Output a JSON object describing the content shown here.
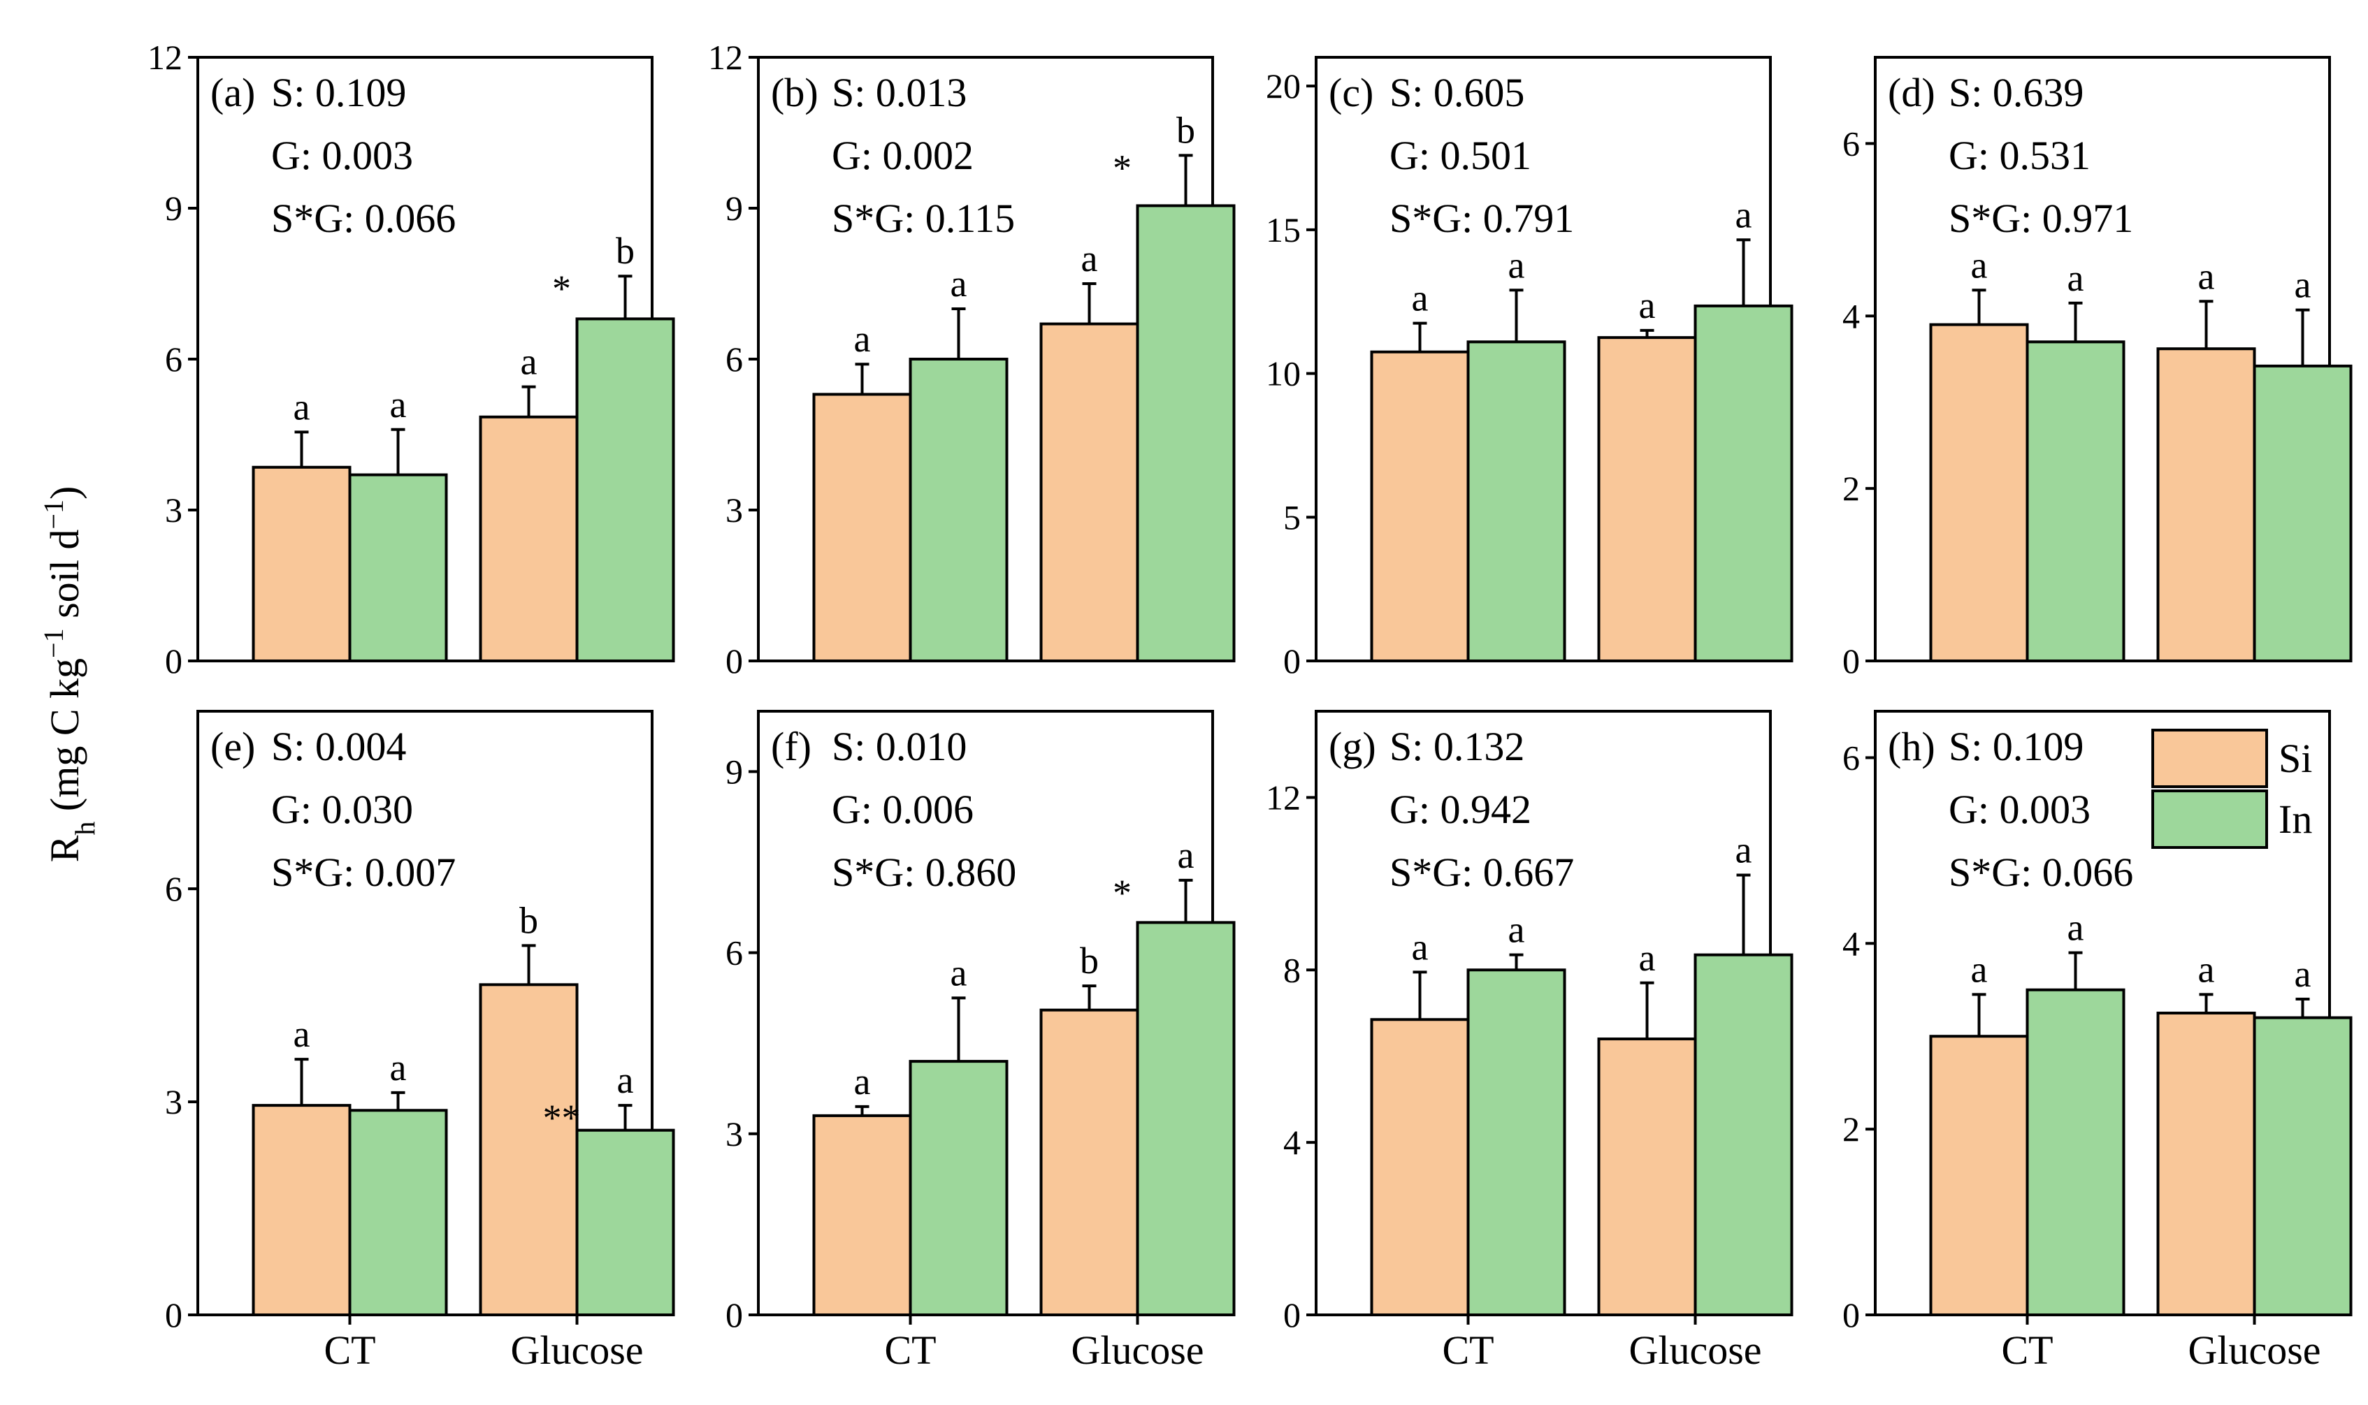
{
  "figure": {
    "ylabel_main": "R",
    "ylabel_sub": "h",
    "ylabel_rest": " (mg C kg",
    "ylabel_sup1": "−1",
    "ylabel_rest2": " soil d",
    "ylabel_sup2": "−1",
    "ylabel_close": ")"
  },
  "legend": {
    "items": [
      {
        "label": "Si",
        "color": "#f9c799"
      },
      {
        "label": "In",
        "color": "#9dd79b"
      }
    ]
  },
  "colors": {
    "Si": "#f9c799",
    "In": "#9dd79b",
    "axis": "#000000"
  },
  "chart_data": [
    {
      "panel": "(a)",
      "type": "bar",
      "stats": [
        "S: 0.109",
        "G: 0.003",
        "S*G: 0.066"
      ],
      "categories": [
        "CT",
        "Glucose"
      ],
      "ylim": [
        0,
        12
      ],
      "yticks": [
        0,
        3,
        6,
        9,
        12
      ],
      "series": [
        {
          "name": "Si",
          "values": [
            3.85,
            4.85
          ],
          "errors": [
            0.7,
            0.6
          ],
          "letters": [
            "a",
            "a"
          ],
          "stars": [
            "",
            ""
          ]
        },
        {
          "name": "In",
          "values": [
            3.7,
            6.8
          ],
          "errors": [
            0.9,
            0.85
          ],
          "letters": [
            "a",
            "b"
          ],
          "stars": [
            "",
            "*"
          ]
        }
      ]
    },
    {
      "panel": "(b)",
      "type": "bar",
      "stats": [
        "S: 0.013",
        "G: 0.002",
        "S*G: 0.115"
      ],
      "categories": [
        "CT",
        "Glucose"
      ],
      "ylim": [
        0,
        12
      ],
      "yticks": [
        0,
        3,
        6,
        9,
        12
      ],
      "series": [
        {
          "name": "Si",
          "values": [
            5.3,
            6.7
          ],
          "errors": [
            0.6,
            0.8
          ],
          "letters": [
            "a",
            "a"
          ],
          "stars": [
            "",
            ""
          ]
        },
        {
          "name": "In",
          "values": [
            6.0,
            9.05
          ],
          "errors": [
            1.0,
            1.0
          ],
          "letters": [
            "a",
            "b"
          ],
          "stars": [
            "",
            "*"
          ]
        }
      ]
    },
    {
      "panel": "(c)",
      "type": "bar",
      "stats": [
        "S: 0.605",
        "G: 0.501",
        "S*G: 0.791"
      ],
      "categories": [
        "CT",
        "Glucose"
      ],
      "ylim": [
        0,
        21
      ],
      "yticks": [
        0,
        5,
        10,
        15,
        20
      ],
      "series": [
        {
          "name": "Si",
          "values": [
            10.75,
            11.25
          ],
          "errors": [
            1.0,
            0.25
          ],
          "letters": [
            "a",
            "a"
          ],
          "stars": [
            "",
            ""
          ]
        },
        {
          "name": "In",
          "values": [
            11.1,
            12.35
          ],
          "errors": [
            1.8,
            2.3
          ],
          "letters": [
            "a",
            "a"
          ],
          "stars": [
            "",
            ""
          ]
        }
      ]
    },
    {
      "panel": "(d)",
      "type": "bar",
      "stats": [
        "S: 0.639",
        "G: 0.531",
        "S*G: 0.971"
      ],
      "categories": [
        "CT",
        "Glucose"
      ],
      "ylim": [
        0,
        7
      ],
      "yticks": [
        0,
        2,
        4,
        6
      ],
      "series": [
        {
          "name": "Si",
          "values": [
            3.9,
            3.62
          ],
          "errors": [
            0.4,
            0.55
          ],
          "letters": [
            "a",
            "a"
          ],
          "stars": [
            "",
            ""
          ]
        },
        {
          "name": "In",
          "values": [
            3.7,
            3.42
          ],
          "errors": [
            0.45,
            0.65
          ],
          "letters": [
            "a",
            "a"
          ],
          "stars": [
            "",
            ""
          ]
        }
      ]
    },
    {
      "panel": "(e)",
      "type": "bar",
      "stats": [
        "S: 0.004",
        "G: 0.030",
        "S*G: 0.007"
      ],
      "categories": [
        "CT",
        "Glucose"
      ],
      "ylim": [
        0,
        8.5
      ],
      "yticks": [
        0,
        3,
        6
      ],
      "series": [
        {
          "name": "Si",
          "values": [
            2.95,
            4.65
          ],
          "errors": [
            0.65,
            0.55
          ],
          "letters": [
            "a",
            "b"
          ],
          "stars": [
            "",
            ""
          ]
        },
        {
          "name": "In",
          "values": [
            2.88,
            2.6
          ],
          "errors": [
            0.25,
            0.35
          ],
          "letters": [
            "a",
            "a"
          ],
          "stars": [
            "",
            "**"
          ]
        }
      ]
    },
    {
      "panel": "(f)",
      "type": "bar",
      "stats": [
        "S: 0.010",
        "G: 0.006",
        "S*G: 0.860"
      ],
      "categories": [
        "CT",
        "Glucose"
      ],
      "ylim": [
        0,
        10
      ],
      "yticks": [
        0,
        3,
        6,
        9
      ],
      "series": [
        {
          "name": "Si",
          "values": [
            3.3,
            5.05
          ],
          "errors": [
            0.15,
            0.4
          ],
          "letters": [
            "a",
            "b"
          ],
          "stars": [
            "",
            ""
          ]
        },
        {
          "name": "In",
          "values": [
            4.2,
            6.5
          ],
          "errors": [
            1.05,
            0.7
          ],
          "letters": [
            "a",
            "a"
          ],
          "stars": [
            "",
            "*"
          ]
        }
      ]
    },
    {
      "panel": "(g)",
      "type": "bar",
      "stats": [
        "S: 0.132",
        "G: 0.942",
        "S*G: 0.667"
      ],
      "categories": [
        "CT",
        "Glucose"
      ],
      "ylim": [
        0,
        14
      ],
      "yticks": [
        0,
        4,
        8,
        12
      ],
      "series": [
        {
          "name": "Si",
          "values": [
            6.85,
            6.4
          ],
          "errors": [
            1.1,
            1.3
          ],
          "letters": [
            "a",
            "a"
          ],
          "stars": [
            "",
            ""
          ]
        },
        {
          "name": "In",
          "values": [
            8.0,
            8.35
          ],
          "errors": [
            0.35,
            1.85
          ],
          "letters": [
            "a",
            "a"
          ],
          "stars": [
            "",
            ""
          ]
        }
      ]
    },
    {
      "panel": "(h)",
      "type": "bar",
      "stats": [
        "S: 0.109",
        "G: 0.003",
        "S*G: 0.066"
      ],
      "categories": [
        "CT",
        "Glucose"
      ],
      "ylim": [
        0,
        6.5
      ],
      "yticks": [
        0,
        2,
        4,
        6
      ],
      "series": [
        {
          "name": "Si",
          "values": [
            3.0,
            3.25
          ],
          "errors": [
            0.45,
            0.2
          ],
          "letters": [
            "a",
            "a"
          ],
          "stars": [
            "",
            ""
          ]
        },
        {
          "name": "In",
          "values": [
            3.5,
            3.2
          ],
          "errors": [
            0.4,
            0.2
          ],
          "letters": [
            "a",
            "a"
          ],
          "stars": [
            "",
            ""
          ]
        }
      ]
    }
  ]
}
